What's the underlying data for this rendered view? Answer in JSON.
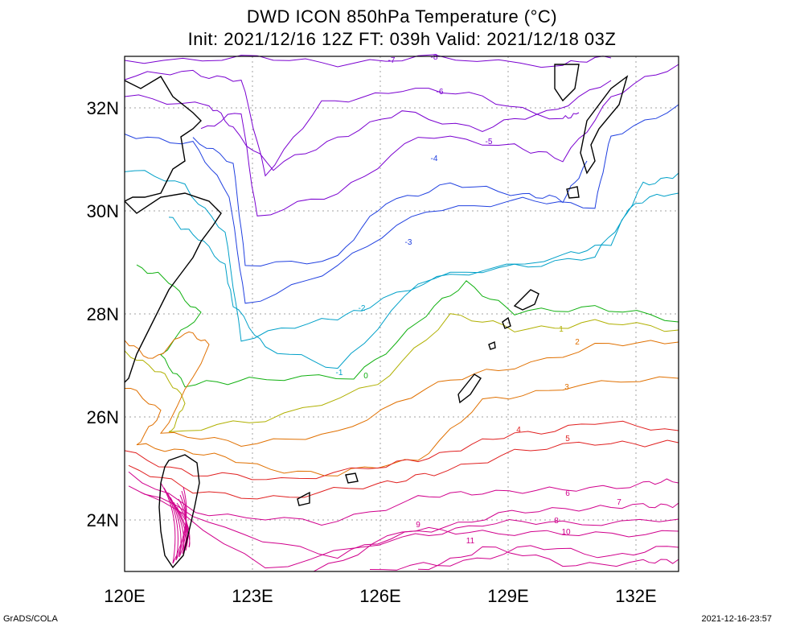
{
  "title": {
    "line1": "DWD ICON 850hPa Temperature (°C)",
    "line2": "Init: 2021/12/16 12Z  FT: 039h  Valid: 2021/12/18 03Z"
  },
  "map": {
    "lon_range": [
      120,
      133
    ],
    "lat_range": [
      23,
      33
    ],
    "x_ticks": [
      "120E",
      "123E",
      "126E",
      "129E",
      "132E"
    ],
    "y_ticks": [
      "24N",
      "26N",
      "28N",
      "30N",
      "32N"
    ],
    "grid": "dotted",
    "contour_interval": 1,
    "contour_labels": [
      "-8",
      "-7",
      "-6",
      "-5",
      "-4",
      "-3",
      "-2",
      "-1",
      "0",
      "1",
      "2",
      "3",
      "4",
      "5",
      "6",
      "7",
      "8",
      "9",
      "10",
      "11"
    ]
  },
  "colors": {
    "cold": "#7a00d0",
    "cool": "#2040e0",
    "cyan": "#00a0c8",
    "green": "#10b010",
    "yellow": "#b0b000",
    "orange": "#e07000",
    "red": "#e02020",
    "magenta": "#d0008c",
    "coast": "#000000",
    "grid": "#a0a0a0"
  },
  "footer": {
    "left": "GrADS/COLA",
    "right": "2021-12-16-23:57"
  }
}
